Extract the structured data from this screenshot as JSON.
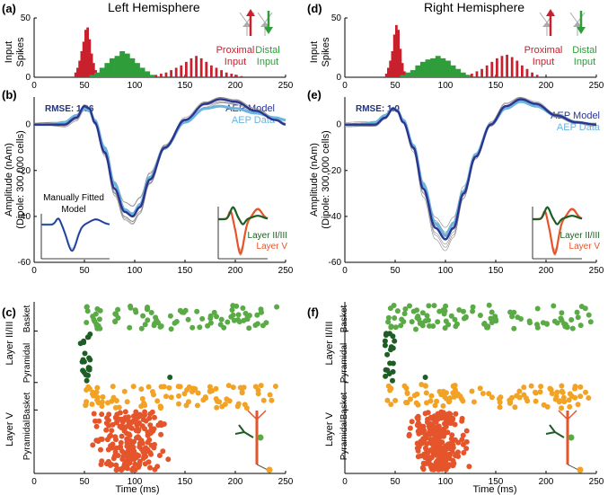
{
  "colors": {
    "input_proximal": "#c8202d",
    "input_distal": "#2f9d3a",
    "model": "#2b3590",
    "data": "#6ab4e0",
    "trial": "#8a8a8a",
    "l23_basket": "#5aaa45",
    "l23_pyramidal": "#1d5e24",
    "l5_basket": "#f2a224",
    "l5_pyramidal": "#e5552b",
    "inset_l23": "#1d5e24",
    "inset_l5": "#e5552b",
    "rmse_text": "#24337a"
  },
  "panels": {
    "left": {
      "hemisphere_title": "Left Hemisphere",
      "input_label": "(a)",
      "aep_label": "(b)",
      "raster_label": "(c)",
      "rmse": "RMSE: 1.96",
      "inset_title_line1": "Manually Fitted",
      "inset_title_line2": "Model"
    },
    "right": {
      "hemisphere_title": "Right Hemisphere",
      "input_label": "(d)",
      "aep_label": "(e)",
      "raster_label": "(f)",
      "rmse": "RMSE: 1.0"
    }
  },
  "legend": {
    "proximal_line1": "Proximal",
    "proximal_line2": "Input",
    "distal_line1": "Distal",
    "distal_line2": "Input",
    "aep_model": "AEP Model",
    "aep_data": "AEP Data",
    "layer23": "Layer II/III",
    "layer5": "Layer V"
  },
  "axes": {
    "input_ylabel_line1": "Input",
    "input_ylabel_line2": "Spikes",
    "aep_ylabel_line1": "Amplitude (nAm)",
    "aep_ylabel_line2": "(Dipole: 300,000 cells)",
    "raster_xlabel": "Time (ms)",
    "raster_layer23": "Layer II/III",
    "raster_layer5": "Layer V",
    "raster_basket": "Basket",
    "raster_pyramidal": "Pyramidal"
  },
  "chart_data": [
    {
      "id": "input-left",
      "type": "bar",
      "title": "Left Hemisphere",
      "ylabel": "Input Spikes",
      "x_ticks": [
        "0",
        "50",
        "100",
        "150",
        "200",
        "250"
      ],
      "y_ticks": [
        "0",
        "50"
      ],
      "xlim": [
        0,
        250
      ],
      "ylim": [
        0,
        50
      ],
      "series": [
        {
          "name": "Proximal Input",
          "color": "#c8202d",
          "bins_ms": [
            40,
            42,
            44,
            46,
            48,
            50,
            52,
            54,
            56,
            58,
            60,
            62,
            64,
            66,
            120,
            125,
            130,
            135,
            140,
            145,
            150,
            155,
            160,
            165,
            170,
            175,
            180,
            185,
            190,
            195,
            200,
            205
          ],
          "values": [
            4,
            8,
            14,
            22,
            30,
            40,
            42,
            32,
            20,
            12,
            6,
            3,
            2,
            1,
            2,
            3,
            4,
            6,
            8,
            10,
            13,
            16,
            18,
            16,
            13,
            10,
            8,
            6,
            4,
            3,
            2,
            1
          ]
        },
        {
          "name": "Distal Input",
          "color": "#2f9d3a",
          "bins_ms": [
            55,
            60,
            65,
            70,
            75,
            80,
            85,
            90,
            95,
            100,
            105,
            110,
            115
          ],
          "values": [
            2,
            4,
            8,
            12,
            16,
            18,
            22,
            20,
            16,
            12,
            8,
            5,
            2
          ]
        }
      ]
    },
    {
      "id": "input-right",
      "type": "bar",
      "title": "Right Hemisphere",
      "ylabel": "Input Spikes",
      "x_ticks": [
        "0",
        "50",
        "100",
        "150",
        "200",
        "250"
      ],
      "y_ticks": [
        "0",
        "50"
      ],
      "xlim": [
        0,
        250
      ],
      "ylim": [
        0,
        50
      ],
      "series": [
        {
          "name": "Proximal Input",
          "color": "#c8202d",
          "bins_ms": [
            40,
            42,
            44,
            46,
            48,
            50,
            52,
            54,
            56,
            58,
            60,
            120,
            125,
            130,
            135,
            140,
            145,
            150,
            155,
            160,
            165,
            170,
            175,
            180,
            185,
            190
          ],
          "values": [
            3,
            8,
            14,
            22,
            36,
            44,
            40,
            24,
            12,
            5,
            2,
            2,
            3,
            5,
            7,
            10,
            13,
            16,
            18,
            19,
            17,
            14,
            10,
            7,
            4,
            2
          ]
        },
        {
          "name": "Distal Input",
          "color": "#2f9d3a",
          "bins_ms": [
            55,
            60,
            65,
            70,
            75,
            80,
            85,
            90,
            95,
            100,
            105,
            110,
            115,
            120
          ],
          "values": [
            2,
            4,
            6,
            10,
            13,
            15,
            16,
            18,
            16,
            14,
            10,
            7,
            4,
            2
          ]
        }
      ]
    },
    {
      "id": "aep-left",
      "type": "line",
      "ylabel": "Amplitude (nAm) (Dipole: 300,000 cells)",
      "x_ticks": [
        "0",
        "50",
        "100",
        "150",
        "200",
        "250"
      ],
      "y_ticks": [
        "0",
        "-20",
        "-40",
        "-60"
      ],
      "xlim": [
        0,
        250
      ],
      "ylim": [
        -60,
        12
      ],
      "rmse": 1.96,
      "series": [
        {
          "name": "AEP Model",
          "color": "#2b3590",
          "x": [
            0,
            15,
            30,
            42,
            50,
            55,
            60,
            70,
            80,
            90,
            98,
            105,
            115,
            130,
            150,
            170,
            185,
            200,
            220,
            240,
            250
          ],
          "y": [
            0,
            0,
            0,
            3,
            8,
            7,
            1,
            -12,
            -28,
            -38,
            -40,
            -36,
            -24,
            -10,
            2,
            9,
            11,
            10,
            6,
            2,
            0
          ]
        },
        {
          "name": "AEP Data",
          "color": "#6ab4e0",
          "x": [
            0,
            15,
            30,
            42,
            50,
            55,
            60,
            70,
            80,
            90,
            98,
            105,
            115,
            130,
            150,
            170,
            185,
            200,
            220,
            240,
            250
          ],
          "y": [
            0,
            0,
            1,
            4,
            7,
            6,
            2,
            -10,
            -26,
            -37,
            -39,
            -35,
            -23,
            -10,
            1,
            7,
            8,
            7,
            5,
            3,
            2
          ]
        }
      ]
    },
    {
      "id": "aep-right",
      "type": "line",
      "ylabel": "Amplitude (nAm) (Dipole: 300,000 cells)",
      "x_ticks": [
        "0",
        "50",
        "100",
        "150",
        "200",
        "250"
      ],
      "y_ticks": [
        "0",
        "-20",
        "-40",
        "-60"
      ],
      "xlim": [
        0,
        250
      ],
      "ylim": [
        -60,
        12
      ],
      "rmse": 1.0,
      "series": [
        {
          "name": "AEP Model",
          "color": "#2b3590",
          "x": [
            0,
            15,
            30,
            40,
            48,
            52,
            58,
            68,
            78,
            90,
            100,
            108,
            118,
            130,
            145,
            160,
            175,
            190,
            210,
            230,
            250
          ],
          "y": [
            0,
            0,
            0,
            3,
            7,
            6,
            1,
            -10,
            -28,
            -45,
            -50,
            -45,
            -30,
            -14,
            0,
            8,
            11,
            9,
            4,
            1,
            0
          ]
        },
        {
          "name": "AEP Data",
          "color": "#6ab4e0",
          "x": [
            0,
            15,
            30,
            40,
            48,
            52,
            58,
            68,
            78,
            90,
            100,
            108,
            118,
            130,
            145,
            160,
            175,
            190,
            210,
            230,
            250
          ],
          "y": [
            0,
            0,
            1,
            4,
            7,
            6,
            2,
            -9,
            -26,
            -43,
            -48,
            -43,
            -29,
            -13,
            0,
            7,
            10,
            8,
            4,
            1,
            0
          ]
        }
      ]
    },
    {
      "id": "raster-left",
      "type": "scatter",
      "xlabel": "Time (ms)",
      "x_ticks": [
        "0",
        "50",
        "100",
        "150",
        "200",
        "250"
      ],
      "xlim": [
        0,
        250
      ],
      "groups": [
        {
          "name": "Layer II/III Basket",
          "color": "#5aaa45",
          "t_start": 45,
          "t_end": 245,
          "count": 90,
          "seed": 11
        },
        {
          "name": "Layer II/III Pyramidal",
          "color": "#1d5e24",
          "t_start": 46,
          "t_end": 56,
          "count": 22,
          "seed": 12
        },
        {
          "name": "Layer V Basket",
          "color": "#f2a224",
          "t_start": 50,
          "t_end": 245,
          "count": 95,
          "seed": 13
        },
        {
          "name": "Layer V Pyramidal",
          "color": "#e5552b",
          "t_start": 50,
          "t_end": 140,
          "count": 210,
          "seed": 14
        }
      ]
    },
    {
      "id": "raster-right",
      "type": "scatter",
      "xlabel": "Time (ms)",
      "x_ticks": [
        "0",
        "50",
        "100",
        "150",
        "200",
        "250"
      ],
      "xlim": [
        0,
        250
      ],
      "groups": [
        {
          "name": "Layer II/III Basket",
          "color": "#5aaa45",
          "t_start": 40,
          "t_end": 245,
          "count": 100,
          "seed": 21
        },
        {
          "name": "Layer II/III Pyramidal",
          "color": "#1d5e24",
          "t_start": 40,
          "t_end": 50,
          "count": 20,
          "seed": 22
        },
        {
          "name": "Layer V Basket",
          "color": "#f2a224",
          "t_start": 40,
          "t_end": 245,
          "count": 105,
          "seed": 23
        },
        {
          "name": "Layer V Pyramidal",
          "color": "#e5552b",
          "t_start": 55,
          "t_end": 130,
          "count": 240,
          "seed": 24
        }
      ]
    }
  ]
}
